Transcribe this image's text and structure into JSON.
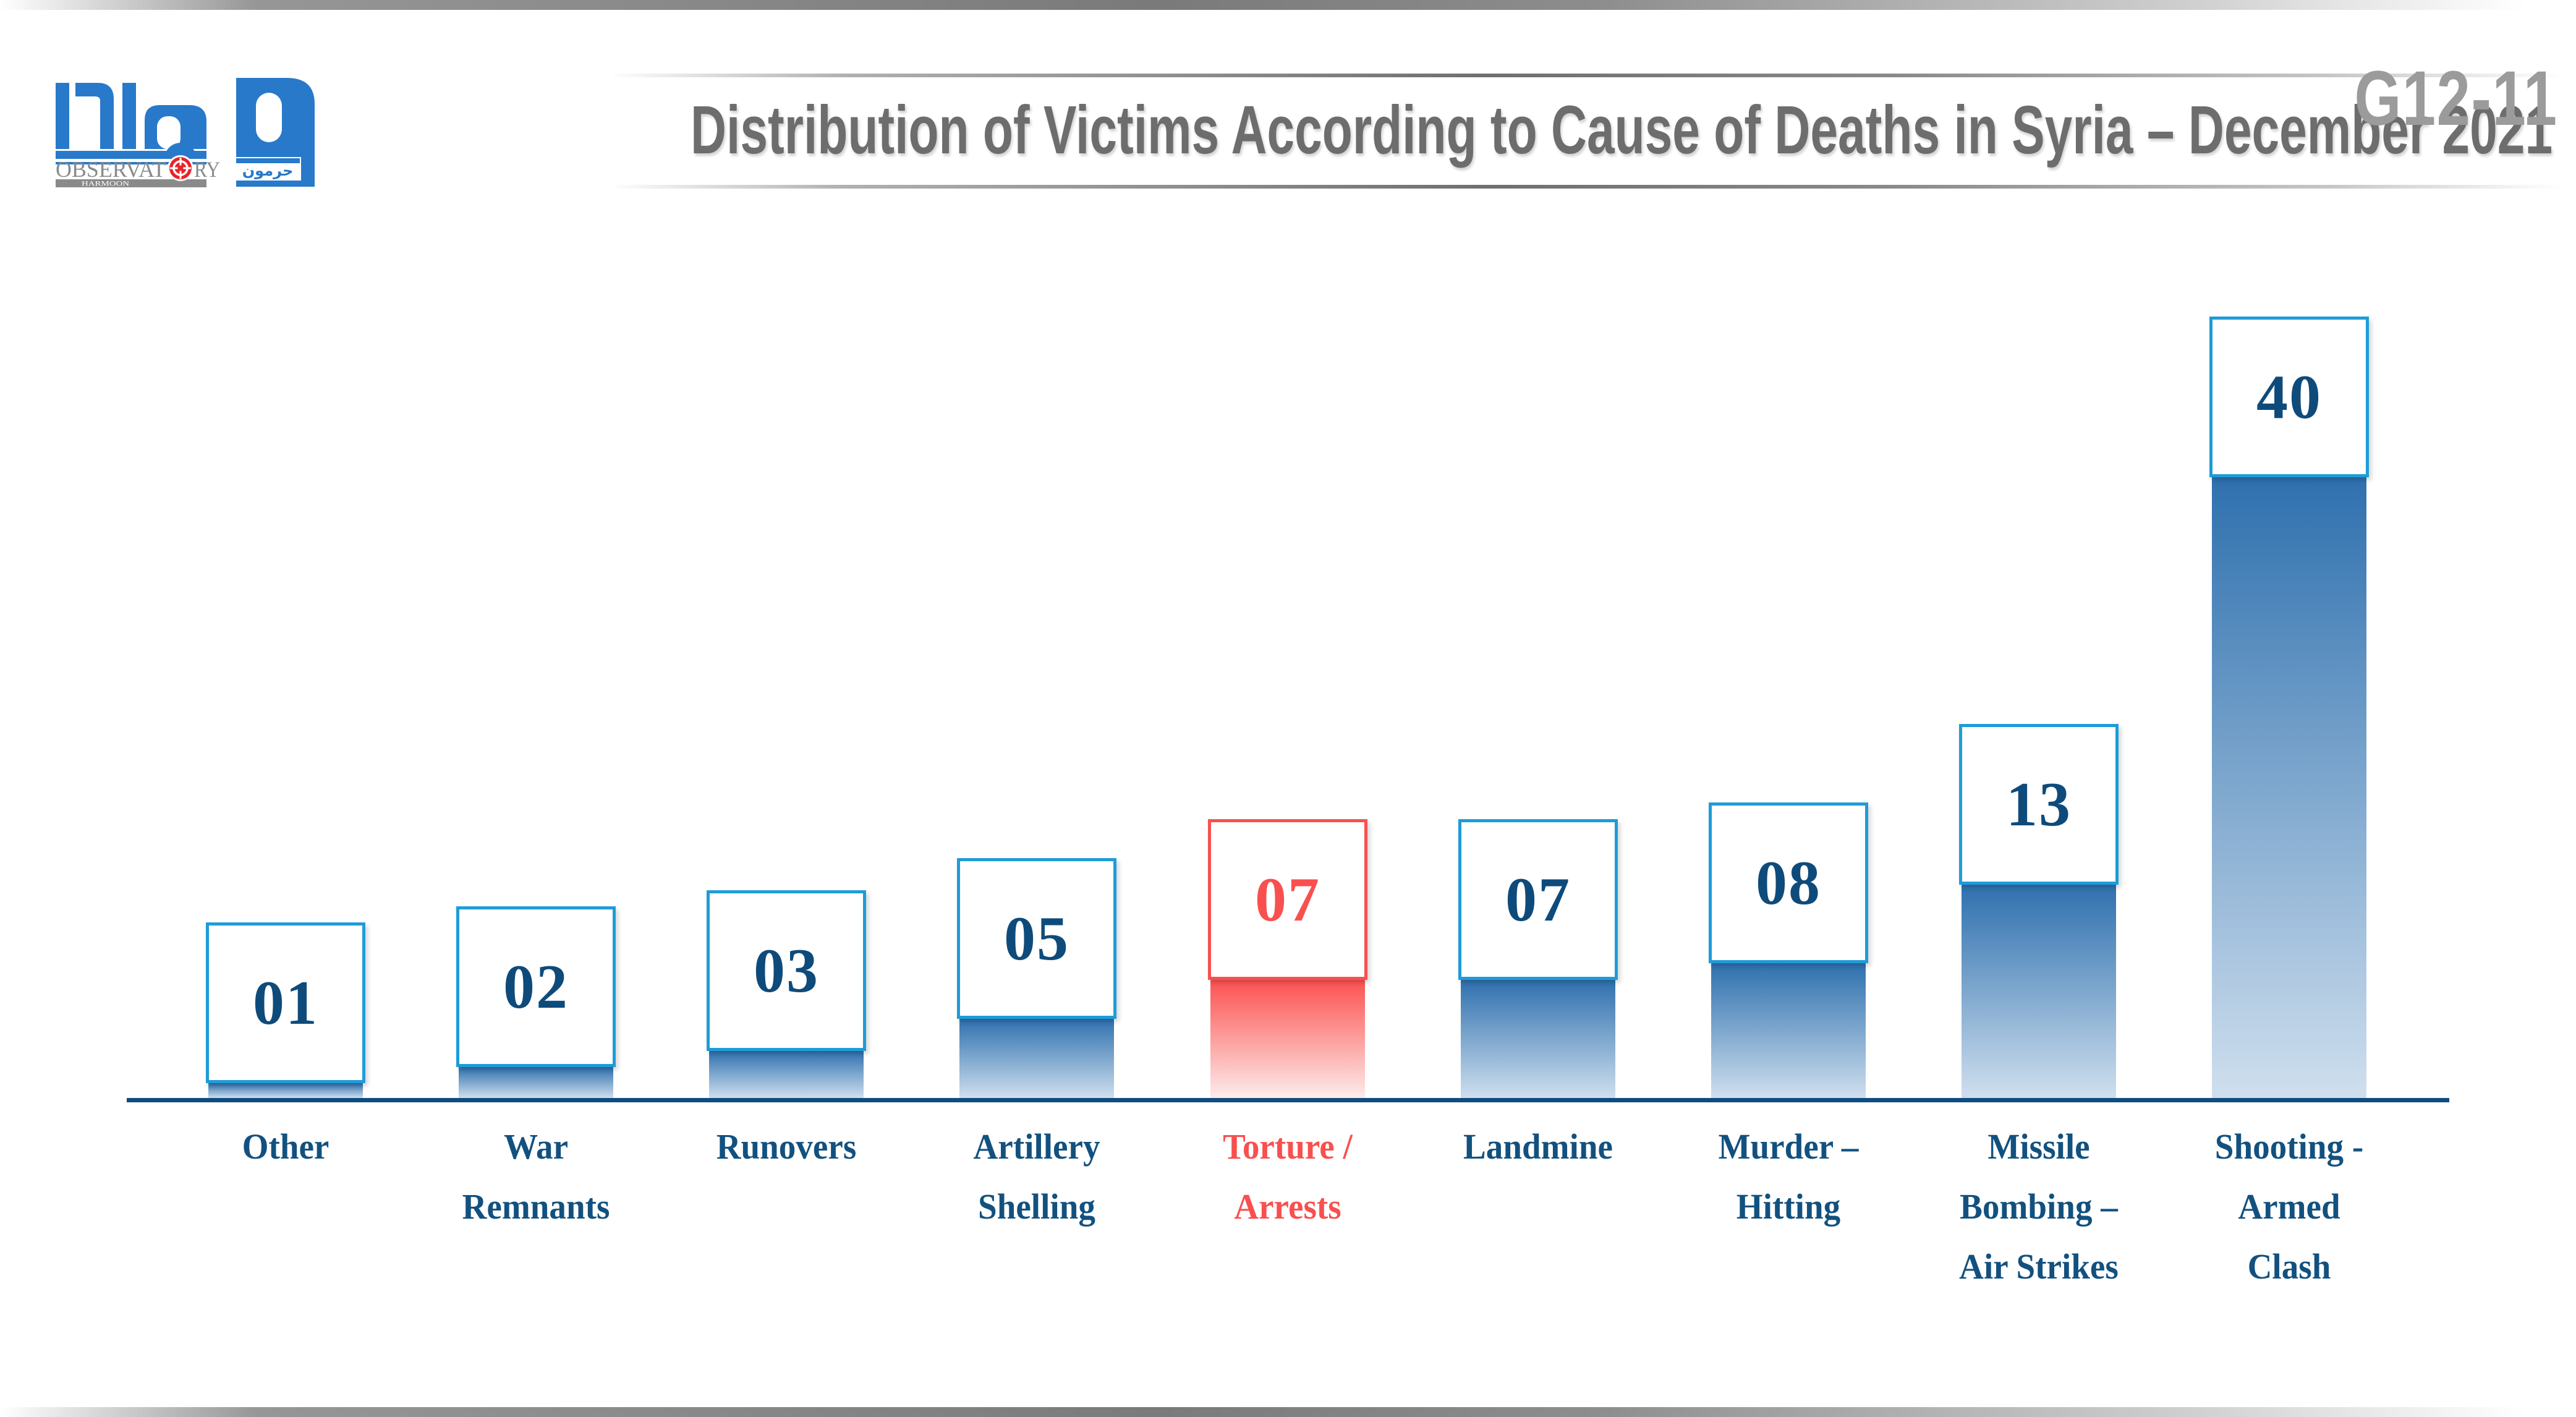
{
  "page": {
    "title": "Distribution of Victims According to Cause of Deaths in Syria – December 2021",
    "code": "G12-11"
  },
  "logo": {
    "arabic_main": "مرصد",
    "arabic_sub": "حرمون",
    "observatory_left": "OBSERVAT",
    "observatory_right": "RY",
    "harmoon": "HARMOON"
  },
  "chart_data": {
    "type": "bar",
    "title": "Distribution of Victims According to Cause of Deaths in Syria – December 2021",
    "xlabel": "",
    "ylabel": "",
    "legend": "none",
    "grid": false,
    "categories": [
      "Other",
      "War Remnants",
      "Runovers",
      "Artillery Shelling",
      "Torture / Arrests",
      "Landmine",
      "Murder – Hitting",
      "Missile Bombing – Air Strikes",
      "Shooting - Armed Clash"
    ],
    "values": [
      1,
      2,
      3,
      5,
      7,
      7,
      8,
      13,
      40
    ],
    "value_labels": [
      "01",
      "02",
      "03",
      "05",
      "07",
      "07",
      "08",
      "13",
      "40"
    ],
    "label_lines": [
      [
        "Other"
      ],
      [
        "War",
        "Remnants"
      ],
      [
        "Runovers"
      ],
      [
        "Artillery",
        "Shelling"
      ],
      [
        "Torture /",
        "Arrests"
      ],
      [
        "Landmine"
      ],
      [
        "Murder –",
        "Hitting"
      ],
      [
        "Missile",
        "Bombing –",
        "Air Strikes"
      ],
      [
        "Shooting -",
        "Armed",
        "Clash"
      ]
    ],
    "highlight_index": 4,
    "colors": {
      "bar_gradient_top": "#2e70ae",
      "bar_gradient_bottom": "#cfdfee",
      "box_border_blue": "#1e9cd8",
      "value_text_blue": "#0e4b7b",
      "label_text_blue": "#12517f",
      "axis_line": "#0f4c80",
      "highlight_red": "#f8504f",
      "red_gradient_top": "#fb5150",
      "red_gradient_bottom": "#fdeceb",
      "title_gray": "#6d6d6d",
      "code_gray": "#9b9b9b",
      "logo_blue": "#2879ca",
      "logo_gray": "#8a8a8a",
      "logo_red": "#e8232a"
    }
  }
}
